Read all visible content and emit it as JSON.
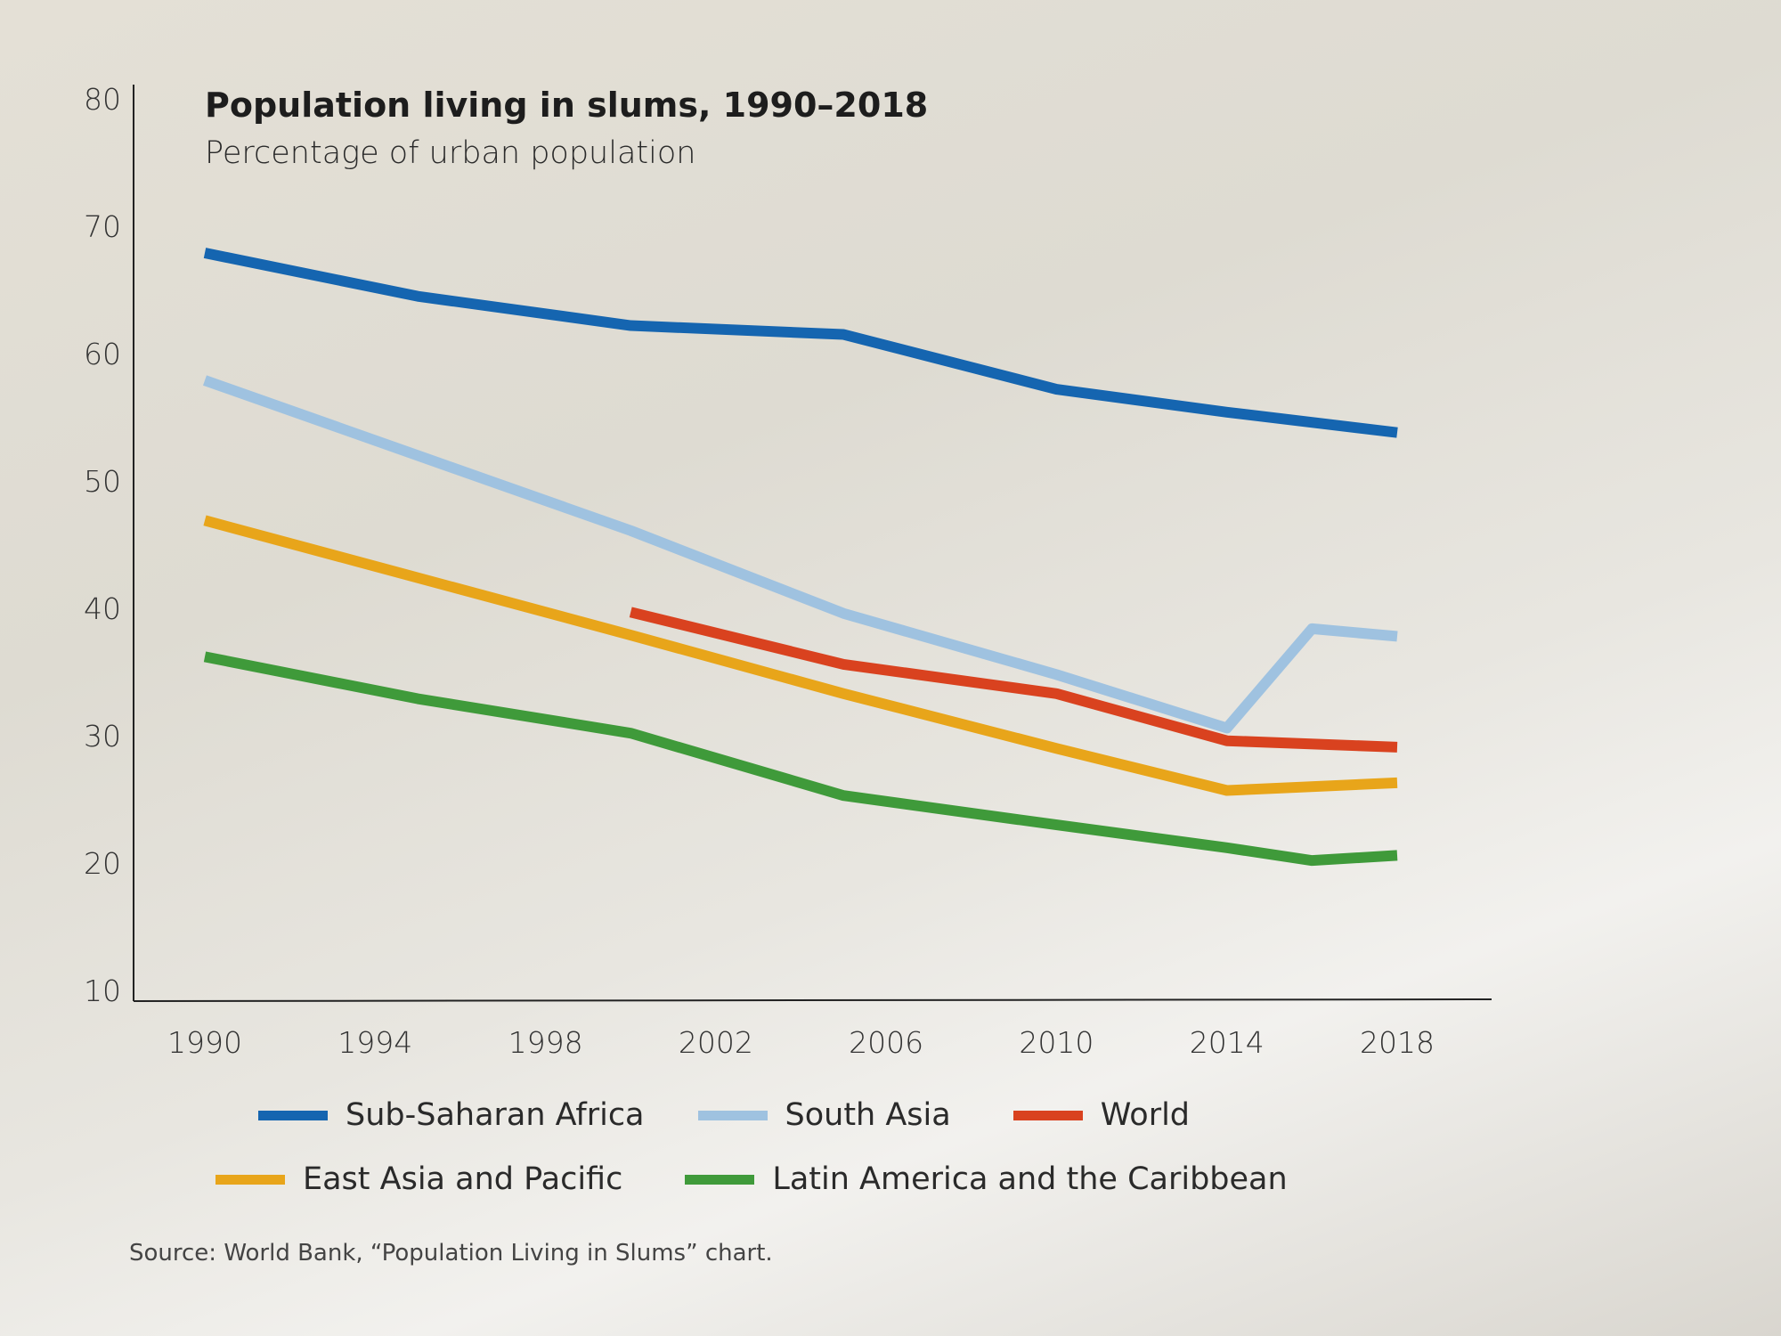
{
  "chart_data": {
    "type": "line",
    "title": "Population living in slums, 1990–2018",
    "subtitle": "Percentage of urban population",
    "xlabel": "",
    "ylabel": "",
    "xlim": [
      1990,
      2018
    ],
    "ylim": [
      10,
      80
    ],
    "x_ticks": [
      "1990",
      "1994",
      "1998",
      "2002",
      "2006",
      "2010",
      "2014",
      "2018"
    ],
    "y_ticks": [
      "10",
      "20",
      "30",
      "40",
      "50",
      "60",
      "70",
      "80"
    ],
    "grid": false,
    "legend_position": "bottom",
    "series": [
      {
        "name": "Sub-Saharan Africa",
        "color": "#1565b0",
        "x": [
          1990,
          1995,
          2000,
          2005,
          2010,
          2014,
          2018
        ],
        "values": [
          67.9,
          64.5,
          62.2,
          61.5,
          57.2,
          55.4,
          53.8
        ]
      },
      {
        "name": "South Asia",
        "color": "#9fc2e0",
        "x": [
          1990,
          2000,
          2005,
          2010,
          2014,
          2016,
          2018
        ],
        "values": [
          57.9,
          46.1,
          39.6,
          34.8,
          30.6,
          38.4,
          37.8
        ]
      },
      {
        "name": "World",
        "color": "#d9421f",
        "x": [
          2000,
          2005,
          2010,
          2014,
          2018
        ],
        "values": [
          39.7,
          35.6,
          33.3,
          29.6,
          29.1
        ]
      },
      {
        "name": "East Asia and Pacific",
        "color": "#e8a51a",
        "x": [
          1990,
          2000,
          2005,
          2010,
          2014,
          2018
        ],
        "values": [
          46.9,
          37.9,
          33.3,
          29.0,
          25.7,
          26.3
        ]
      },
      {
        "name": "Latin America and the Caribbean",
        "color": "#3f9a3a",
        "x": [
          1990,
          1995,
          2000,
          2005,
          2010,
          2014,
          2016,
          2018
        ],
        "values": [
          36.2,
          32.9,
          30.2,
          25.3,
          23.0,
          21.2,
          20.2,
          20.6
        ]
      }
    ],
    "source": "Source: World Bank, “Population Living in Slums” chart."
  }
}
